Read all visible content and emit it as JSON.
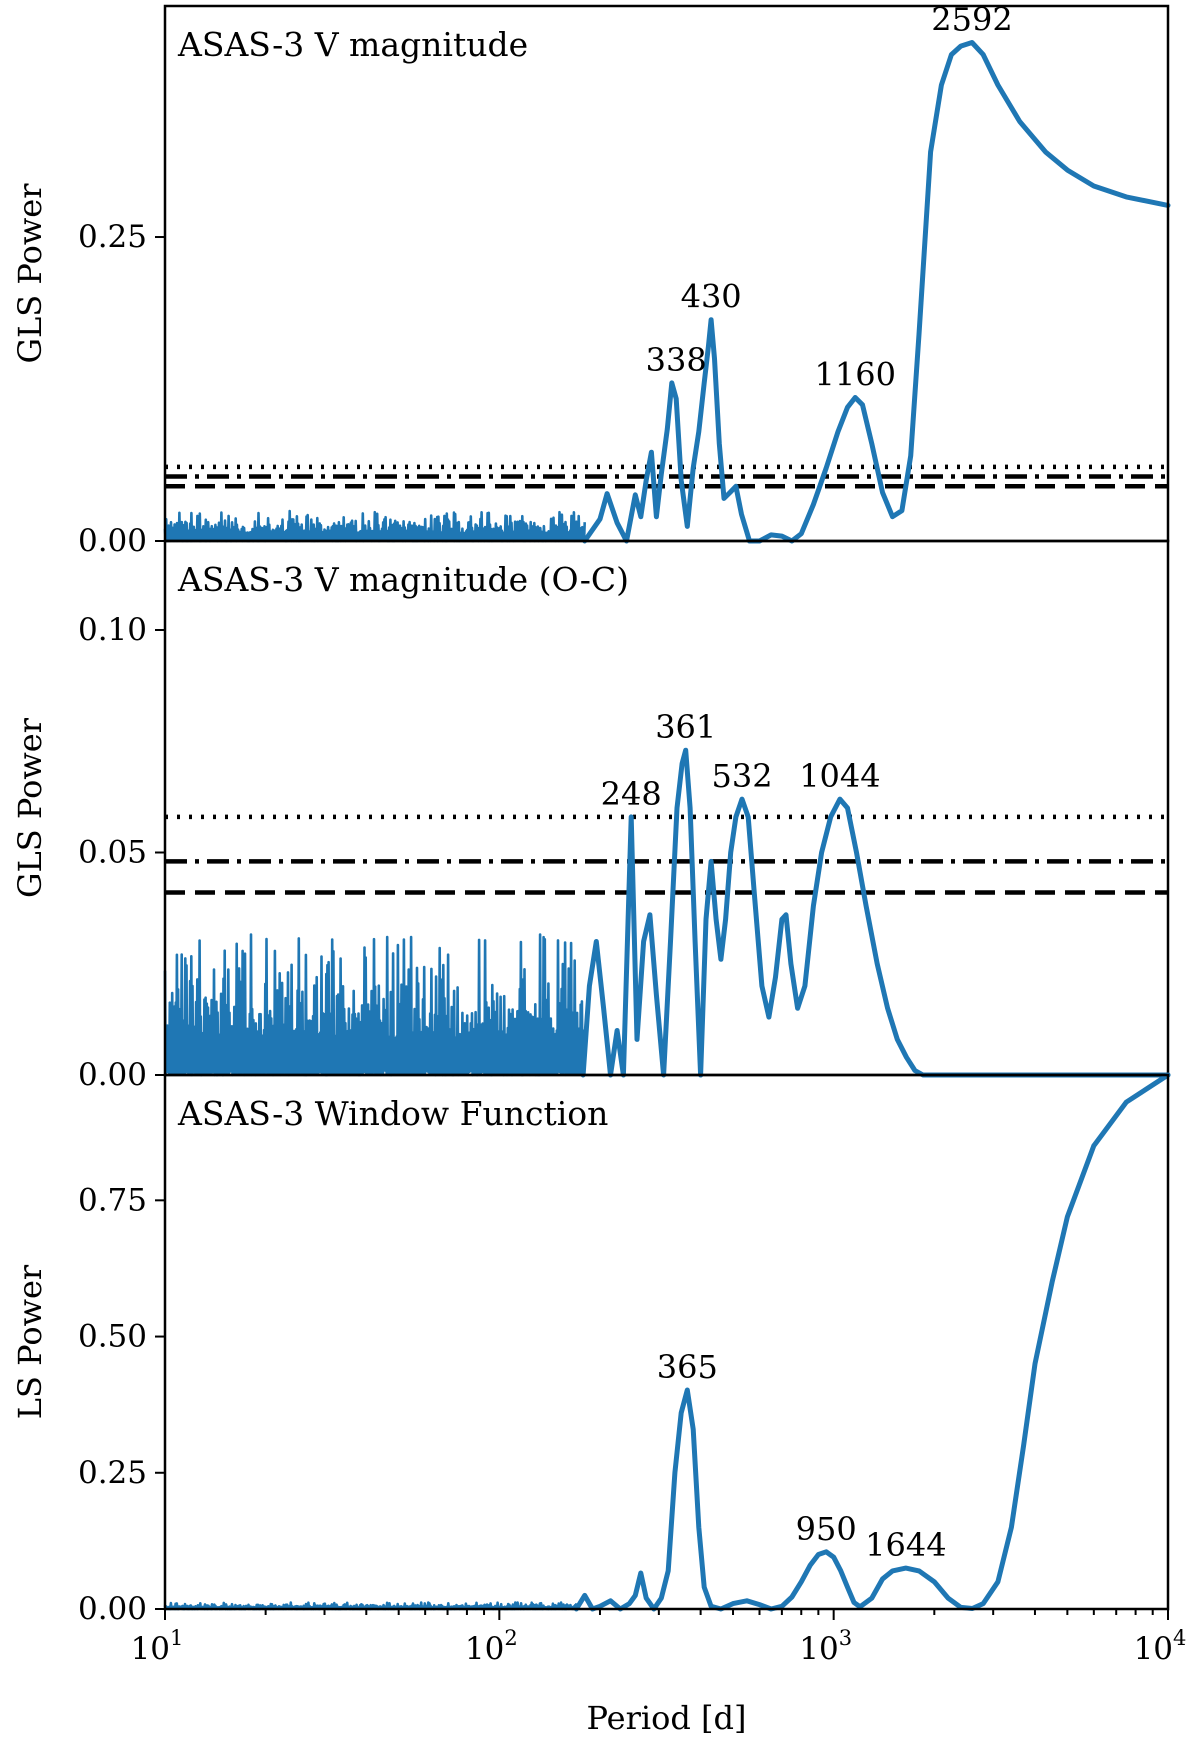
{
  "chart_data": [
    {
      "type": "line",
      "title": "ASAS-3 V magnitude",
      "ylabel": "GLS Power",
      "xscale": "log",
      "xlim": [
        10,
        10000
      ],
      "ylim": [
        0,
        0.44
      ],
      "yticks": [
        0.0,
        0.25
      ],
      "ytick_labels": [
        "0.00",
        "0.25"
      ],
      "thresholds": [
        {
          "style": "dotted",
          "value": 0.061
        },
        {
          "style": "dash-dot",
          "value": 0.053
        },
        {
          "style": "dashed",
          "value": 0.045
        }
      ],
      "noise": {
        "from": 10,
        "to": 180,
        "max": 0.025
      },
      "series": [
        {
          "x": [
            180,
            200,
            210,
            225,
            240,
            255,
            265,
            275,
            285,
            295,
            305,
            318,
            328,
            338,
            350,
            365,
            380,
            395,
            410,
            422,
            430,
            440,
            455,
            470,
            490,
            510,
            530,
            560,
            600,
            650,
            700,
            750,
            800,
            870,
            950,
            1030,
            1100,
            1160,
            1220,
            1300,
            1400,
            1500,
            1600,
            1700,
            1800,
            1950,
            2100,
            2250,
            2400,
            2592,
            2800,
            3100,
            3600,
            4300,
            5000,
            6000,
            7500,
            10000
          ],
          "y": [
            0.0,
            0.018,
            0.039,
            0.015,
            0.0,
            0.038,
            0.02,
            0.05,
            0.073,
            0.02,
            0.055,
            0.092,
            0.13,
            0.117,
            0.05,
            0.012,
            0.06,
            0.09,
            0.13,
            0.16,
            0.182,
            0.15,
            0.08,
            0.035,
            0.04,
            0.045,
            0.022,
            0.0,
            0.0,
            0.005,
            0.004,
            0.0,
            0.006,
            0.03,
            0.06,
            0.09,
            0.11,
            0.118,
            0.112,
            0.08,
            0.04,
            0.02,
            0.025,
            0.07,
            0.17,
            0.32,
            0.375,
            0.4,
            0.407,
            0.41,
            0.4,
            0.375,
            0.345,
            0.32,
            0.305,
            0.292,
            0.283,
            0.276
          ]
        }
      ],
      "peaks": [
        {
          "label": "338",
          "x": 338,
          "y": 0.13
        },
        {
          "label": "430",
          "x": 430,
          "y": 0.182
        },
        {
          "label": "1160",
          "x": 1160,
          "y": 0.118
        },
        {
          "label": "2592",
          "x": 2592,
          "y": 0.41
        }
      ]
    },
    {
      "type": "line",
      "title": "ASAS-3 V magnitude (O-C)",
      "ylabel": "GLS Power",
      "xscale": "log",
      "xlim": [
        10,
        10000
      ],
      "ylim": [
        0,
        0.12
      ],
      "yticks": [
        0.0,
        0.05,
        0.1
      ],
      "ytick_labels": [
        "0.00",
        "0.05",
        "0.10"
      ],
      "thresholds": [
        {
          "style": "dotted",
          "value": 0.058
        },
        {
          "style": "dash-dot",
          "value": 0.048
        },
        {
          "style": "dashed",
          "value": 0.041
        }
      ],
      "noise": {
        "from": 10,
        "to": 178,
        "max": 0.032
      },
      "series": [
        {
          "x": [
            178,
            186,
            195,
            205,
            215,
            225,
            235,
            248,
            258,
            270,
            282,
            295,
            310,
            325,
            340,
            352,
            361,
            372,
            385,
            400,
            415,
            430,
            445,
            460,
            475,
            492,
            510,
            532,
            555,
            580,
            610,
            640,
            670,
            700,
            720,
            745,
            780,
            820,
            870,
            920,
            980,
            1044,
            1100,
            1170,
            1250,
            1350,
            1450,
            1550,
            1650,
            1750,
            1850,
            2000,
            2500,
            4000,
            10000
          ],
          "y": [
            0.0,
            0.02,
            0.03,
            0.015,
            0.0,
            0.01,
            0.0,
            0.058,
            0.008,
            0.03,
            0.036,
            0.018,
            0.0,
            0.03,
            0.06,
            0.07,
            0.073,
            0.06,
            0.03,
            0.0,
            0.035,
            0.048,
            0.035,
            0.026,
            0.035,
            0.05,
            0.058,
            0.062,
            0.058,
            0.04,
            0.02,
            0.013,
            0.022,
            0.035,
            0.036,
            0.025,
            0.015,
            0.02,
            0.038,
            0.05,
            0.058,
            0.062,
            0.06,
            0.05,
            0.038,
            0.025,
            0.015,
            0.008,
            0.004,
            0.001,
            0.0,
            0.0,
            0.0,
            0.0,
            0.0
          ]
        }
      ],
      "peaks": [
        {
          "label": "248",
          "x": 248,
          "y": 0.058
        },
        {
          "label": "361",
          "x": 361,
          "y": 0.073
        },
        {
          "label": "532",
          "x": 532,
          "y": 0.062
        },
        {
          "label": "1044",
          "x": 1044,
          "y": 0.062
        }
      ]
    },
    {
      "type": "line",
      "title": "ASAS-3 Window Function",
      "ylabel": "LS Power",
      "xlabel": "Period [d]",
      "xscale": "log",
      "xlim": [
        10,
        10000
      ],
      "ylim": [
        0,
        0.98
      ],
      "yticks": [
        0.0,
        0.25,
        0.5,
        0.75
      ],
      "ytick_labels": [
        "0.00",
        "0.25",
        "0.50",
        "0.75"
      ],
      "xticks": [
        10,
        100,
        1000,
        10000
      ],
      "xtick_labels": [
        {
          "base": "10",
          "exp": "1"
        },
        {
          "base": "10",
          "exp": "2"
        },
        {
          "base": "10",
          "exp": "3"
        },
        {
          "base": "10",
          "exp": "4"
        }
      ],
      "thresholds": [],
      "noise": {
        "from": 10,
        "to": 170,
        "max": 0.012
      },
      "series": [
        {
          "x": [
            170,
            180,
            190,
            200,
            215,
            230,
            245,
            255,
            265,
            275,
            290,
            305,
            320,
            335,
            350,
            365,
            380,
            395,
            410,
            430,
            460,
            500,
            550,
            600,
            650,
            700,
            750,
            800,
            850,
            900,
            950,
            1000,
            1050,
            1100,
            1150,
            1200,
            1300,
            1400,
            1500,
            1644,
            1800,
            2000,
            2200,
            2400,
            2600,
            2800,
            3100,
            3400,
            3700,
            4000,
            4500,
            5000,
            6000,
            7500,
            10000
          ],
          "y": [
            0.0,
            0.025,
            0.0,
            0.005,
            0.015,
            0.0,
            0.01,
            0.025,
            0.066,
            0.02,
            0.0,
            0.02,
            0.07,
            0.25,
            0.36,
            0.402,
            0.33,
            0.15,
            0.04,
            0.005,
            0.0,
            0.01,
            0.015,
            0.008,
            0.0,
            0.005,
            0.022,
            0.05,
            0.08,
            0.1,
            0.105,
            0.095,
            0.07,
            0.04,
            0.012,
            0.004,
            0.02,
            0.055,
            0.07,
            0.075,
            0.07,
            0.05,
            0.02,
            0.003,
            0.001,
            0.01,
            0.05,
            0.15,
            0.3,
            0.45,
            0.6,
            0.72,
            0.85,
            0.93,
            0.98
          ]
        }
      ],
      "peaks": [
        {
          "label": "365",
          "x": 365,
          "y": 0.402
        },
        {
          "label": "950",
          "x": 950,
          "y": 0.105
        },
        {
          "label": "1644",
          "x": 1644,
          "y": 0.075
        }
      ]
    }
  ]
}
